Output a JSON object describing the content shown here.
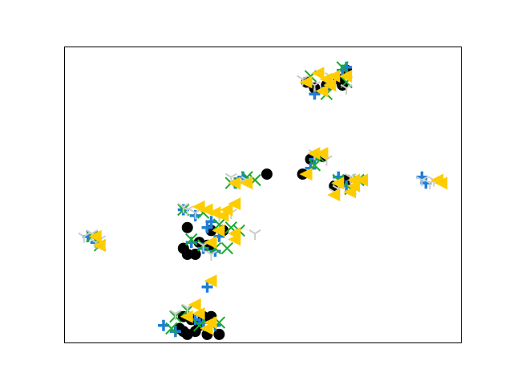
{
  "chart_data": {
    "type": "scatter",
    "title": "",
    "xlabel": "",
    "ylabel": "",
    "xlim": [
      0,
      10
    ],
    "ylim": [
      0,
      10
    ],
    "grid": false,
    "legend": "none",
    "axis_ticks": "hidden",
    "series": [
      {
        "marker": "circle",
        "color": "#000000",
        "points": [
          [
            6.1,
            8.8
          ],
          [
            6.3,
            8.6
          ],
          [
            6.6,
            8.7
          ],
          [
            6.9,
            8.9
          ],
          [
            7.1,
            9.2
          ],
          [
            7.0,
            8.7
          ],
          [
            6.2,
            6.2
          ],
          [
            6.5,
            6.3
          ],
          [
            6.0,
            5.7
          ],
          [
            7.1,
            5.5
          ],
          [
            6.8,
            5.3
          ],
          [
            5.1,
            5.7
          ],
          [
            3.1,
            3.9
          ],
          [
            3.7,
            3.8
          ],
          [
            4.0,
            3.8
          ],
          [
            3.4,
            3.4
          ],
          [
            3.6,
            3.3
          ],
          [
            3.7,
            3.3
          ],
          [
            3.0,
            3.2
          ],
          [
            3.1,
            3.0
          ],
          [
            3.3,
            3.0
          ],
          [
            3.0,
            0.9
          ],
          [
            3.2,
            0.8
          ],
          [
            3.5,
            0.9
          ],
          [
            3.4,
            0.6
          ],
          [
            3.7,
            0.9
          ],
          [
            2.9,
            0.5
          ],
          [
            3.0,
            0.4
          ],
          [
            3.3,
            0.4
          ],
          [
            3.6,
            0.3
          ],
          [
            3.9,
            0.3
          ],
          [
            3.1,
            0.3
          ]
        ]
      },
      {
        "marker": "plus-thick",
        "color": "#1f7fd6",
        "points": [
          [
            6.3,
            8.4
          ],
          [
            6.6,
            8.6
          ],
          [
            7.0,
            9.2
          ],
          [
            7.1,
            9.3
          ],
          [
            6.2,
            5.9
          ],
          [
            6.3,
            6.2
          ],
          [
            6.9,
            5.6
          ],
          [
            7.1,
            5.3
          ],
          [
            9.0,
            5.6
          ],
          [
            9.1,
            5.4
          ],
          [
            4.3,
            5.4
          ],
          [
            4.5,
            5.6
          ],
          [
            3.0,
            4.5
          ],
          [
            3.3,
            4.3
          ],
          [
            3.7,
            4.1
          ],
          [
            3.6,
            3.9
          ],
          [
            3.9,
            3.6
          ],
          [
            3.2,
            3.4
          ],
          [
            3.5,
            3.2
          ],
          [
            3.8,
            3.1
          ],
          [
            2.5,
            0.6
          ],
          [
            2.8,
            0.4
          ],
          [
            3.3,
            0.8
          ],
          [
            3.5,
            0.7
          ],
          [
            3.8,
            0.6
          ],
          [
            3.6,
            1.9
          ],
          [
            0.6,
            3.6
          ],
          [
            0.8,
            3.4
          ]
        ]
      },
      {
        "marker": "x",
        "color": "#1aab2b",
        "points": [
          [
            6.2,
            9.0
          ],
          [
            6.6,
            8.4
          ],
          [
            7.0,
            9.3
          ],
          [
            7.1,
            8.8
          ],
          [
            6.3,
            6.0
          ],
          [
            6.4,
            6.3
          ],
          [
            6.9,
            5.5
          ],
          [
            7.2,
            5.2
          ],
          [
            7.4,
            5.5
          ],
          [
            4.2,
            5.4
          ],
          [
            4.6,
            5.6
          ],
          [
            4.8,
            5.5
          ],
          [
            3.0,
            4.5
          ],
          [
            3.5,
            4.4
          ],
          [
            3.9,
            4.0
          ],
          [
            4.2,
            3.9
          ],
          [
            4.4,
            3.8
          ],
          [
            3.2,
            3.5
          ],
          [
            3.5,
            3.3
          ],
          [
            3.8,
            3.2
          ],
          [
            4.1,
            3.2
          ],
          [
            2.8,
            0.9
          ],
          [
            3.1,
            1.1
          ],
          [
            3.4,
            0.6
          ],
          [
            3.9,
            0.7
          ],
          [
            2.7,
            0.5
          ],
          [
            0.7,
            3.6
          ],
          [
            0.9,
            3.3
          ]
        ]
      },
      {
        "marker": "tri-down",
        "color": "#cccccc",
        "points": [
          [
            6.0,
            8.9
          ],
          [
            6.3,
            8.7
          ],
          [
            6.7,
            9.0
          ],
          [
            7.1,
            8.6
          ],
          [
            6.3,
            6.4
          ],
          [
            6.6,
            6.2
          ],
          [
            6.9,
            5.4
          ],
          [
            6.8,
            5.1
          ],
          [
            7.2,
            5.6
          ],
          [
            6.9,
            5.2
          ],
          [
            9.0,
            5.5
          ],
          [
            9.3,
            5.5
          ],
          [
            9.2,
            5.4
          ],
          [
            4.2,
            5.6
          ],
          [
            4.4,
            5.4
          ],
          [
            4.6,
            5.5
          ],
          [
            3.0,
            4.6
          ],
          [
            3.1,
            4.5
          ],
          [
            3.3,
            4.4
          ],
          [
            3.9,
            4.3
          ],
          [
            4.2,
            4.4
          ],
          [
            4.8,
            3.7
          ],
          [
            3.5,
            3.3
          ],
          [
            3.7,
            3.0
          ],
          [
            2.8,
            1.0
          ],
          [
            3.1,
            1.2
          ],
          [
            0.5,
            3.6
          ],
          [
            0.7,
            3.7
          ],
          [
            0.8,
            3.4
          ],
          [
            0.9,
            3.5
          ]
        ]
      },
      {
        "marker": "tri-left",
        "color": "#ffcc00",
        "points": [
          [
            6.1,
            8.8
          ],
          [
            6.4,
            9.1
          ],
          [
            6.6,
            8.9
          ],
          [
            6.8,
            9.0
          ],
          [
            7.1,
            9.0
          ],
          [
            6.7,
            8.7
          ],
          [
            6.5,
            8.5
          ],
          [
            6.3,
            6.4
          ],
          [
            6.5,
            6.4
          ],
          [
            6.1,
            5.7
          ],
          [
            6.9,
            5.4
          ],
          [
            7.3,
            5.3
          ],
          [
            7.3,
            5.5
          ],
          [
            7.5,
            5.5
          ],
          [
            6.8,
            5.0
          ],
          [
            7.2,
            5.1
          ],
          [
            9.4,
            5.5
          ],
          [
            9.5,
            5.4
          ],
          [
            4.3,
            5.4
          ],
          [
            4.6,
            5.4
          ],
          [
            3.4,
            4.6
          ],
          [
            3.6,
            4.5
          ],
          [
            3.8,
            4.4
          ],
          [
            4.0,
            4.3
          ],
          [
            4.1,
            4.5
          ],
          [
            4.3,
            4.7
          ],
          [
            3.9,
            3.8
          ],
          [
            4.3,
            3.5
          ],
          [
            4.3,
            3.7
          ],
          [
            3.7,
            3.4
          ],
          [
            3.7,
            2.1
          ],
          [
            3.1,
            0.9
          ],
          [
            3.3,
            1.3
          ],
          [
            3.4,
            1.0
          ],
          [
            3.7,
            0.7
          ],
          [
            3.6,
            0.5
          ],
          [
            0.8,
            3.6
          ],
          [
            0.9,
            3.3
          ]
        ]
      }
    ]
  }
}
